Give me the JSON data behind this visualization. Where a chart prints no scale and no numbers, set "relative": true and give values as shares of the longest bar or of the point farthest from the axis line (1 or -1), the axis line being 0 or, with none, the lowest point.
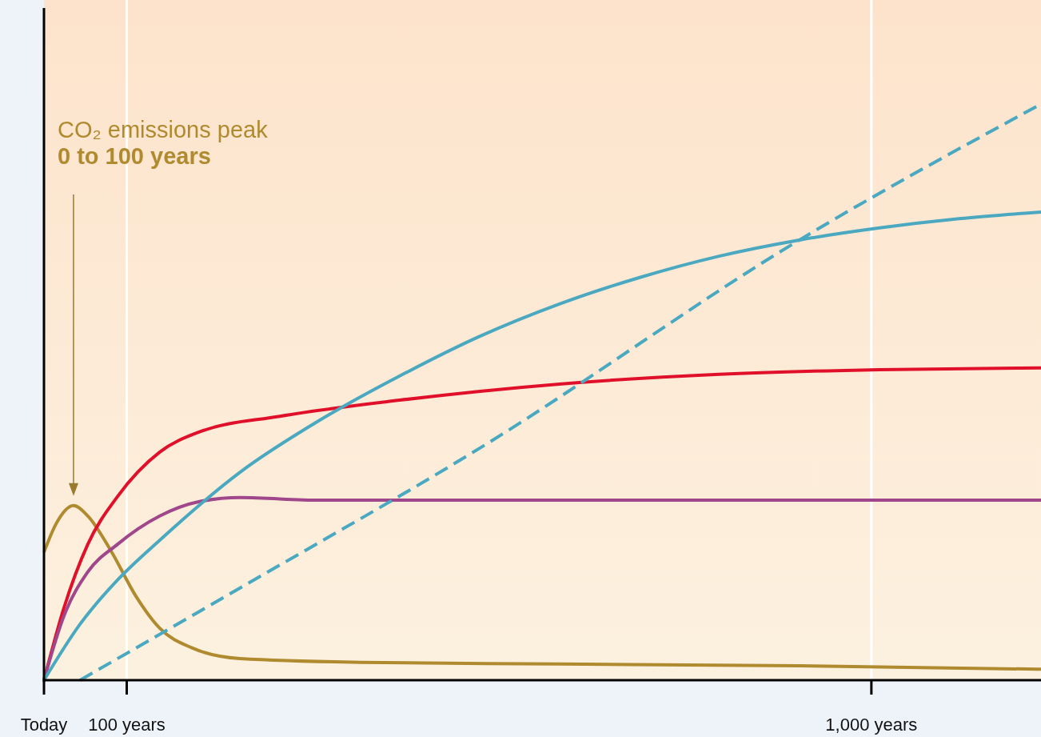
{
  "chart_data": {
    "type": "line",
    "relative": true,
    "xlim": [
      0,
      1205
    ],
    "xticks": [
      {
        "value": 0,
        "label": "Today"
      },
      {
        "value": 100,
        "label": "100 years"
      },
      {
        "value": 1000,
        "label": "1,000 years"
      }
    ],
    "grid": "x",
    "tick_labels": "x",
    "series": [
      {
        "color": "#b08a2e",
        "x": [
          0,
          14.5,
          35.7,
          53,
          82,
          111,
          140,
          179,
          237,
          382,
          623,
          913,
          1205
        ],
        "values": [
          0.222,
          0.271,
          0.303,
          0.285,
          0.222,
          0.146,
          0.09,
          0.056,
          0.0375,
          0.031,
          0.028,
          0.025,
          0.019
        ]
      },
      {
        "color": "#e0102a",
        "x": [
          0,
          24,
          53,
          89,
          140,
          188,
          285,
          430,
          623,
          816,
          1010,
          1205
        ],
        "values": [
          0,
          0.125,
          0.236,
          0.319,
          0.396,
          0.431,
          0.458,
          0.486,
          0.514,
          0.531,
          0.539,
          0.542
        ]
      },
      {
        "color": "#a0468a",
        "x": [
          0,
          24,
          53,
          89,
          140,
          188,
          237,
          333,
          623,
          1205
        ],
        "values": [
          0,
          0.111,
          0.188,
          0.236,
          0.285,
          0.31,
          0.317,
          0.3125,
          0.3125,
          0.3125
        ]
      },
      {
        "color": "#4aa8c0",
        "x": [
          0,
          43.5,
          89,
          140,
          237,
          333,
          430,
          527,
          623,
          720,
          816,
          913,
          1010,
          1106,
          1205
        ],
        "values": [
          0,
          0.097,
          0.174,
          0.243,
          0.361,
          0.451,
          0.528,
          0.597,
          0.653,
          0.699,
          0.736,
          0.764,
          0.785,
          0.801,
          0.8125
        ]
      },
      {
        "color": "#4aa8c0",
        "line_style": "dashed",
        "x": [
          43.5,
          237,
          527,
          913,
          1205
        ],
        "values": [
          0,
          0.16,
          0.403,
          0.764,
          1
        ]
      }
    ],
    "annotations": [
      "CO₂ emissions peak\n0 to 100 years"
    ]
  }
}
